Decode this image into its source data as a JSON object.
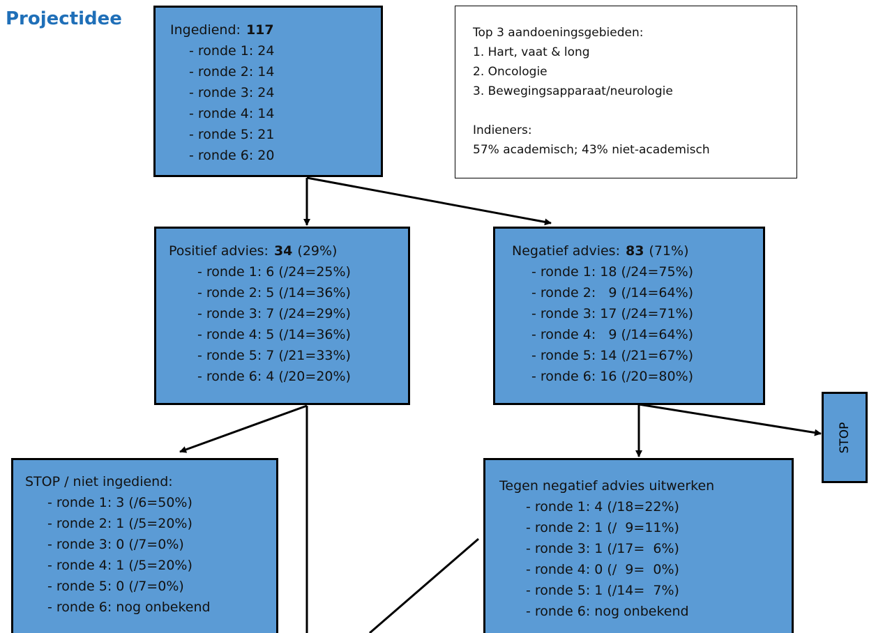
{
  "title": "Projectidee",
  "nodes": [
    {
      "label": "Ingediend:",
      "value": "117",
      "items": [
        "- ronde 1: 24",
        "- ronde 2: 14",
        "- ronde 3: 24",
        "- ronde 4: 14",
        "- ronde 5: 21",
        "- ronde 6: 20"
      ]
    },
    {
      "label": "Positief advies:",
      "value": "34",
      "note": "(29%)",
      "items": [
        "- ronde 1: 6 (/24=25%)",
        "- ronde 2: 5 (/14=36%)",
        "- ronde 3: 7 (/24=29%)",
        "- ronde 4: 5 (/14=36%)",
        "- ronde 5: 7 (/21=33%)",
        "- ronde 6: 4 (/20=20%)"
      ]
    },
    {
      "label": "Negatief advies:",
      "value": "83",
      "note": "(71%)",
      "items": [
        "- ronde 1: 18 (/24=75%)",
        "- ronde 2:   9 (/14=64%)",
        "- ronde 3: 17 (/24=71%)",
        "- ronde 4:   9 (/14=64%)",
        "- ronde 5: 14 (/21=67%)",
        "- ronde 6: 16 (/20=80%)"
      ]
    },
    {
      "label": "STOP"
    },
    {
      "label": "STOP / niet ingediend:",
      "items": [
        "- ronde 1: 3 (/6=50%)",
        "- ronde 2: 1 (/5=20%)",
        "- ronde 3: 0 (/7=0%)",
        "- ronde 4: 1 (/5=20%)",
        "- ronde 5: 0 (/7=0%)",
        "- ronde 6: nog onbekend"
      ]
    },
    {
      "label": "Tegen negatief advies uitwerken",
      "items": [
        "- ronde 1: 4 (/18=22%)",
        "- ronde 2: 1 (/  9=11%)",
        "- ronde 3: 1 (/17=  6%)",
        "- ronde 4: 0 (/  9=  0%)",
        "- ronde 5: 1 (/14=  7%)",
        "- ronde 6: nog onbekend"
      ]
    }
  ],
  "info": {
    "top_title": "Top 3 aandoeningsgebieden:",
    "top_items": [
      "1. Hart, vaat & long",
      "2. Oncologie",
      "3. Bewegingsapparaat/neurologie"
    ],
    "indieners_title": "Indieners:",
    "indieners_text": "57% academisch; 43% niet-academisch"
  }
}
